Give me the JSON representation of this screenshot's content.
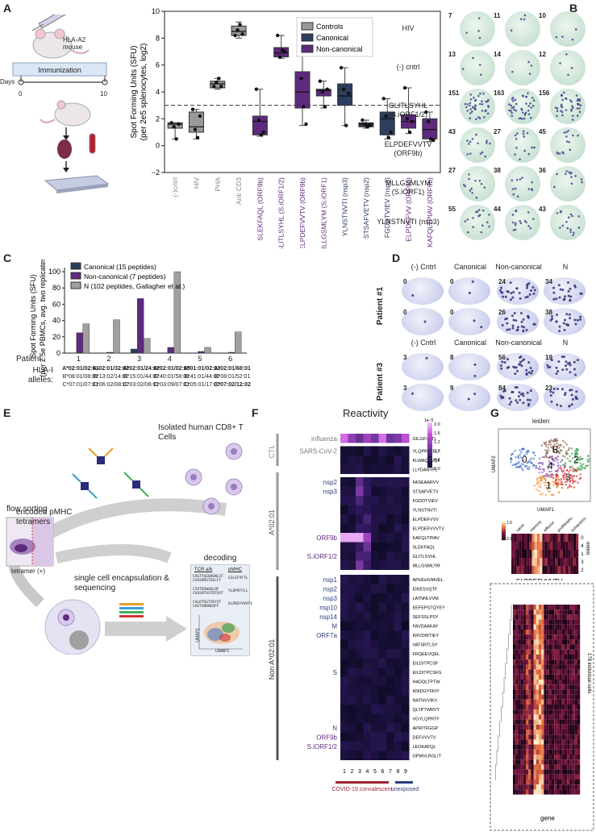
{
  "panels": {
    "A": "A",
    "B": "B",
    "C": "C",
    "D": "D",
    "E": "E",
    "F": "F",
    "G": "G"
  },
  "panelA": {
    "mouse_label": "HLA-A2 mouse",
    "immunization": "Immunization",
    "days_label": "Days",
    "day0": "0",
    "day10": "10"
  },
  "chartA": {
    "type": "box",
    "ylabel_line1": "Spot Forming Units (SFU)",
    "ylabel_line2": "(per 2e5 splenocytes, log2)",
    "ylim": [
      -2,
      10
    ],
    "yticks": [
      "−2",
      "0",
      "2",
      "4",
      "6",
      "8",
      "10"
    ],
    "threshold": 3,
    "legend": [
      "Controls",
      "Canonical",
      "Non-canonical"
    ],
    "colors": {
      "Controls": "#999999",
      "Canonical": "#2c3e5e",
      "Non-canonical": "#5e2a7e"
    },
    "categories": [
      "(-)cntrl",
      "HIV",
      "PHA",
      "Anti CD3",
      "SLEKFAQL (ORF9b)",
      "GLITLSYHL (S.iORF1/2)",
      "ELPDEFVVTV (ORF9b)",
      "MLLGSMLYM (S.iORF1)",
      "YLNSTNVTI (nsp3)",
      "STSAFVETV (nsp2)",
      "FGDDTVIEV (nsp3)",
      "ELPDEFVV (ORF9b)",
      "KAFQLTPIAV (ORF9b)"
    ],
    "group": [
      "Controls",
      "Controls",
      "Controls",
      "Controls",
      "Non-canonical",
      "Non-canonical",
      "Non-canonical",
      "Non-canonical",
      "Canonical",
      "Canonical",
      "Canonical",
      "Non-canonical",
      "Non-canonical"
    ],
    "box": [
      [
        1.3,
        1.7
      ],
      [
        1.0,
        2.5
      ],
      [
        4.3,
        4.8
      ],
      [
        8.2,
        8.9
      ],
      [
        0.8,
        2.2
      ],
      [
        6.6,
        7.3
      ],
      [
        2.8,
        5.5
      ],
      [
        3.7,
        4.2
      ],
      [
        3.0,
        4.6
      ],
      [
        1.4,
        1.7
      ],
      [
        0.8,
        2.5
      ],
      [
        1.3,
        2.3
      ],
      [
        0.5,
        2.0
      ]
    ],
    "median": [
      1.6,
      1.4,
      4.6,
      8.5,
      1.8,
      6.9,
      4.0,
      4.1,
      3.7,
      1.6,
      2.0,
      1.8,
      1.2
    ],
    "whisker": [
      [
        0.5,
        1.7
      ],
      [
        0.5,
        2.7
      ],
      [
        4.2,
        5.0
      ],
      [
        8.0,
        9.2
      ],
      [
        0.7,
        4.2
      ],
      [
        6.5,
        8.2
      ],
      [
        1.5,
        8.3
      ],
      [
        2.8,
        4.8
      ],
      [
        1.5,
        5.8
      ],
      [
        1.3,
        1.9
      ],
      [
        0.5,
        3.5
      ],
      [
        0.9,
        4.3
      ],
      [
        0.3,
        2.5
      ]
    ],
    "points": [
      [
        1.7,
        1.4,
        0.5,
        1.6
      ],
      [
        2.7,
        1.2,
        0.6,
        2.2
      ],
      [
        4.4,
        4.7,
        5.0,
        4.4
      ],
      [
        8.2,
        8.6,
        9.0,
        8.3
      ],
      [
        4.2,
        1.9,
        0.8,
        1.0
      ],
      [
        8.2,
        6.6,
        7.1,
        7.0
      ],
      [
        8.3,
        5.0,
        2.9,
        1.6
      ],
      [
        4.8,
        4.0,
        2.9,
        4.2
      ],
      [
        5.8,
        4.2,
        1.5,
        3.9
      ],
      [
        1.9,
        1.6,
        1.4,
        1.5
      ],
      [
        3.5,
        2.2,
        0.6,
        1.0
      ],
      [
        4.3,
        2.0,
        1.0,
        1.8
      ],
      [
        2.5,
        1.8,
        0.5,
        0.4
      ]
    ]
  },
  "panelB": {
    "rows": [
      {
        "label": "HIV",
        "counts": [
          "7",
          "11",
          "10"
        ]
      },
      {
        "label": "(-) cntrl",
        "counts": [
          "13",
          "14",
          "12"
        ]
      },
      {
        "label": "GLITLSYHL (S.iORF1/2)",
        "counts": [
          "151",
          "163",
          "156"
        ]
      },
      {
        "label": "ELPDEFVVTV (ORF9b)",
        "counts": [
          "43",
          "27",
          "45"
        ]
      },
      {
        "label": "MLLGSMLYM (S.iORF1)",
        "counts": [
          "27",
          "38",
          "36"
        ]
      },
      {
        "label": "YLNSTNVTI (nsp3)",
        "counts": [
          "55",
          "44",
          "43"
        ]
      }
    ]
  },
  "chartC": {
    "type": "bar",
    "ylabel_line1": "Spot Forming Units (SFU)",
    "ylabel_line2": "(per 2.5e PBMCs, avg. two replicates)",
    "ylim": [
      0,
      105
    ],
    "yticks": [
      "0",
      "20",
      "40",
      "60",
      "80",
      "100"
    ],
    "legend": [
      "Canonical (15 peptides)",
      "Non-canonical (7 peptides)",
      "N (102 peptides, Gallagher et al.)"
    ],
    "colors": [
      "#2c3e5e",
      "#5e2a7e",
      "#a0a0a0"
    ],
    "patient_label": "Patient:",
    "alleles_label": "HLA-I alleles:",
    "patients": [
      "1",
      "2",
      "3",
      "4",
      "5",
      "6"
    ],
    "series": [
      {
        "name": "Canonical",
        "values": [
          0,
          0,
          5,
          0,
          0,
          0
        ]
      },
      {
        "name": "Non-canonical",
        "values": [
          25,
          1,
          67,
          7,
          2,
          1
        ]
      },
      {
        "name": "N",
        "values": [
          36,
          41,
          18,
          100,
          7,
          26
        ]
      }
    ],
    "alleles": [
      [
        "A*02:01/02:01",
        "B*08:01/08:01",
        "C*07:01/07:01"
      ],
      [
        "A-02:01/32:02",
        "B*13:02/14:02",
        "C*06:02/08:02"
      ],
      [
        "A*02:01/24:02",
        "B*15:01/44:02",
        "C*03:02/06:01"
      ],
      [
        "A*02:01/02:05",
        "B*40:01/58:01",
        "C*03:09/07:01"
      ],
      [
        "A*01:01/02:01",
        "B*41:01/44:02",
        "C*05:01/17:01"
      ],
      [
        "A*02:01/68:01",
        "B*08:01/52:01",
        "C*07:02/12:02"
      ]
    ]
  },
  "panelD": {
    "columns": [
      "(-) Cntrl",
      "Canonical",
      "Non-canonical",
      "N"
    ],
    "patients": [
      "Patient #1",
      "Patient #3"
    ],
    "counts_p1": [
      [
        "0",
        "0",
        "24",
        "34"
      ],
      [
        "0",
        "0",
        "26",
        "38"
      ]
    ],
    "counts_p3": [
      [
        "3",
        "8",
        "56",
        "19"
      ],
      [
        "3",
        "9",
        "84",
        "23"
      ]
    ]
  },
  "panelE": {
    "encoded": "encoded pMHC tetramers",
    "isolated": "Isolated human CD8+ T Cells",
    "flow": "flow sorting",
    "tetramer": "tetramer (+)",
    "single_cell": "single cell encapsulation & sequencing",
    "decoding": "decoding",
    "tcr": "TCR a/b",
    "pmhc": "pMHC",
    "seqs": [
      [
        "CAGTYGEDQGNLIF CASSRRSTGELFF",
        "GILGFVFTL"
      ],
      [
        "CIVTDSWGKLQF CASSHTVSTDTQYF",
        "YLQPRTFLL"
      ],
      [
        "CALRTSGTYKYIF CASTGRDNEQFF",
        "ELPDEFVVVTV"
      ]
    ],
    "umap1": "UMAP1",
    "umap2": "UMAP2"
  },
  "panelF": {
    "title": "Reactivity",
    "scale_exp": "1e−5",
    "scale_ticks": [
      "2.0",
      "1.6",
      "1.2",
      "0.8",
      "0.4",
      "0.0"
    ],
    "side_groups": [
      "CTL",
      "A*02:01",
      "Non A*02:01"
    ],
    "left_labels": [
      "influenza",
      "SARS-CoV-2",
      "nsp2",
      "nsp3",
      "ORF9b",
      "S.iORF1/2",
      "nsp1",
      "nsp2",
      "nsp3",
      "nsp10",
      "nsp14",
      "M",
      "ORF7a",
      "S",
      "N",
      "ORF9b",
      "S.iORF1/2"
    ],
    "peptides": [
      "GILGFVFTL",
      "YLQPRTFLL",
      "KLWAQCVQL",
      "LLYDANYFL",
      "FASEAARVV",
      "STSAFVETV",
      "FGDDTVIEV",
      "YLNSTNVTI",
      "ELPDEFVVV",
      "ELPDEFVVVTV",
      "KAFQLTPIAV",
      "SLEKFAQL",
      "GLITLSYHL",
      "MLLGSMLYM",
      "APHGHVMVEL",
      "EIKESVQTF",
      "LATNNLVVM",
      "EEFEPSTQYEY",
      "SEFSSLPSY",
      "FAVDAAKAY",
      "KRVDWTIEY",
      "VATSRTLSY",
      "FRQEEVQEL",
      "EILDITPCSF",
      "EILDITPCSFG",
      "HADQLTPTW",
      "KNIDGYFKIY",
      "NATNVVIKV",
      "QLTPTWRVY",
      "VGYLQPRTF",
      "APRITFGGP",
      "DEFVVVTV",
      "LEOKAFQL",
      "GPMVLRGLIT"
    ],
    "columns": [
      "1",
      "2",
      "3",
      "4",
      "5",
      "6",
      "7",
      "8",
      "9"
    ],
    "convalescent": "COVID-19 convalescent",
    "unexposed": "unexposed"
  },
  "panelG": {
    "leiden": "leiden",
    "umap2": "UMAP2",
    "umap1": "UMAP1",
    "clusters": [
      "0",
      "1",
      "2",
      "3",
      "4",
      "5"
    ],
    "scale": [
      "1.0",
      "0.1"
    ],
    "categories": [
      "naive",
      "memory",
      "effector",
      "proliferation",
      "exhaustion"
    ],
    "leiden_side": "leiden",
    "rows": [
      "0",
      "4",
      "1",
      "3",
      "2"
    ],
    "peptide": "ELPDEFVVVTV",
    "cells_label": "178 individual cells",
    "gene_label": "gene"
  }
}
